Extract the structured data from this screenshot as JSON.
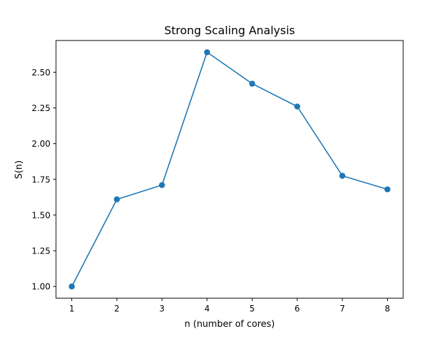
{
  "chart_data": {
    "type": "line",
    "title": "Strong Scaling Analysis",
    "xlabel": "n (number of cores)",
    "ylabel": "S(n)",
    "x": [
      1,
      2,
      3,
      4,
      5,
      6,
      7,
      8
    ],
    "series": [
      {
        "values": [
          1.0,
          1.61,
          1.71,
          2.64,
          2.42,
          2.26,
          1.775,
          1.68
        ],
        "color": "#1f77b4",
        "marker": "circle"
      }
    ],
    "xlim": [
      0.65,
      8.35
    ],
    "ylim": [
      0.918,
      2.722
    ],
    "xticks": [
      1,
      2,
      3,
      4,
      5,
      6,
      7,
      8
    ],
    "xtick_labels": [
      "1",
      "2",
      "3",
      "4",
      "5",
      "6",
      "7",
      "8"
    ],
    "yticks": [
      1.0,
      1.25,
      1.5,
      1.75,
      2.0,
      2.25,
      2.5
    ],
    "ytick_labels": [
      "1.00",
      "1.25",
      "1.50",
      "1.75",
      "2.00",
      "2.25",
      "2.50"
    ],
    "grid": false,
    "legend": false
  }
}
